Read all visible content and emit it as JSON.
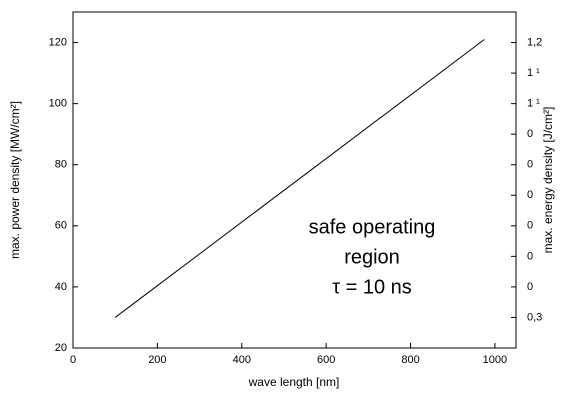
{
  "chart_data": {
    "type": "line",
    "x": [
      100,
      975
    ],
    "values": [
      30,
      121
    ],
    "color": "#000000",
    "xlabel": "wave length [nm]",
    "ylabel": "max. power density [MW/cm²]",
    "y2label": "max. energy density [J/cm²]",
    "xlim": [
      0,
      1050
    ],
    "xticks": [
      0,
      200,
      400,
      600,
      800,
      1000
    ],
    "ylim": [
      20,
      130
    ],
    "yticks": [
      20,
      40,
      60,
      80,
      100,
      120
    ],
    "y2lim": [
      0.2,
      1.3
    ],
    "y2ticks": [
      {
        "value": 0.3,
        "label": "0,3"
      },
      {
        "value": 0.4,
        "label": "0"
      },
      {
        "value": 0.5,
        "label": "0"
      },
      {
        "value": 0.6,
        "label": "0"
      },
      {
        "value": 0.7,
        "label": "0"
      },
      {
        "value": 0.8,
        "label": "0"
      },
      {
        "value": 0.9,
        "label": "0"
      },
      {
        "value": 1.0,
        "label": "1 ¹"
      },
      {
        "value": 1.1,
        "label": "1 ¹"
      },
      {
        "value": 1.2,
        "label": "1,2"
      }
    ],
    "annotations": [
      "safe operating",
      "region",
      "τ = 10 ns"
    ]
  }
}
